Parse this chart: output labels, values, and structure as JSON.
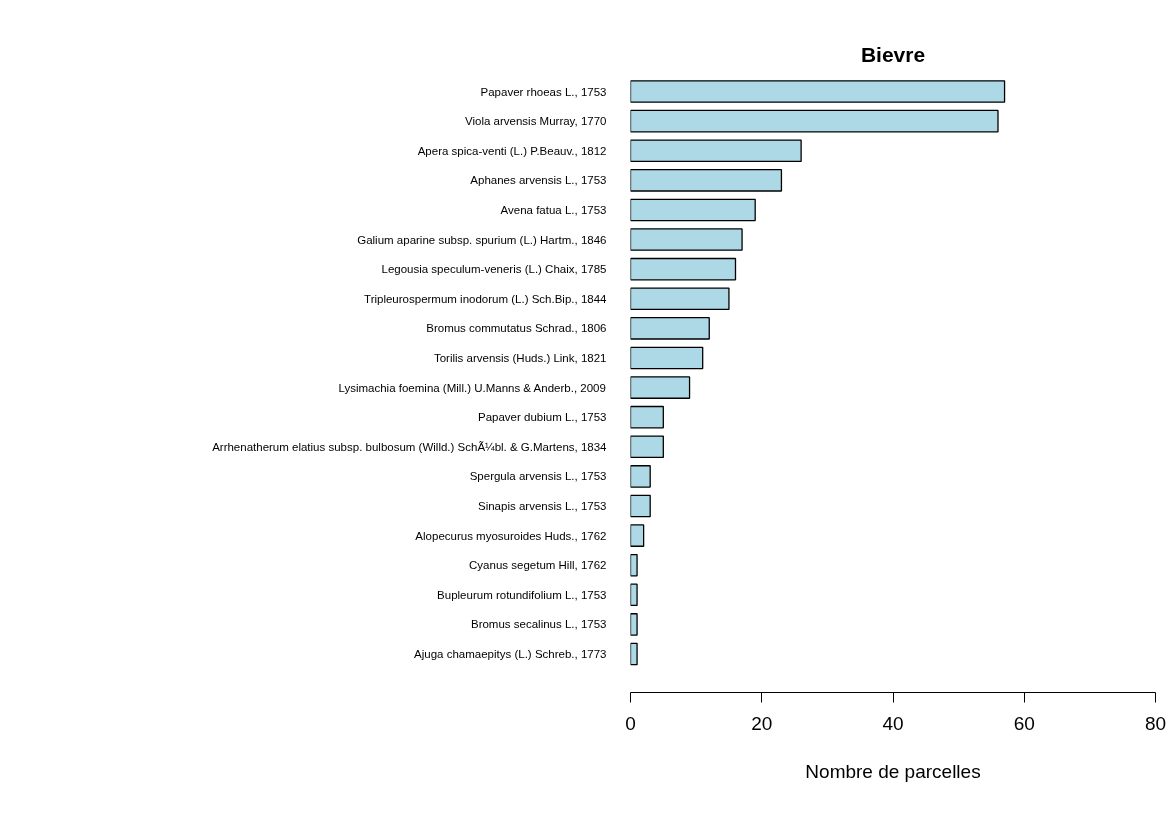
{
  "chart_data": {
    "type": "bar",
    "orientation": "horizontal",
    "title": "Bievre",
    "xlabel": "Nombre de parcelles",
    "categories": [
      "Papaver rhoeas L., 1753",
      "Viola arvensis Murray, 1770",
      "Apera spica-venti (L.) P.Beauv., 1812",
      "Aphanes arvensis L., 1753",
      "Avena fatua L., 1753",
      "Galium aparine subsp. spurium (L.) Hartm., 1846",
      "Legousia speculum-veneris (L.) Chaix, 1785",
      "Tripleurospermum inodorum (L.) Sch.Bip., 1844",
      "Bromus commutatus Schrad., 1806",
      "Torilis arvensis (Huds.) Link, 1821",
      "Lysimachia foemina (Mill.) U.Manns & Anderb., 2009",
      "Papaver dubium L., 1753",
      "Arrhenatherum elatius subsp. bulbosum (Willd.) SchÃ¼bl. & G.Martens, 1834",
      "Spergula arvensis L., 1753",
      "Sinapis arvensis L., 1753",
      "Alopecurus myosuroides Huds., 1762",
      "Cyanus segetum Hill, 1762",
      "Bupleurum rotundifolium L., 1753",
      "Bromus secalinus L., 1753",
      "Ajuga chamaepitys (L.) Schreb., 1773"
    ],
    "values": [
      57,
      56,
      26,
      23,
      19,
      17,
      16,
      15,
      12,
      11,
      9,
      5,
      5,
      3,
      3,
      2,
      1,
      1,
      1,
      1
    ],
    "color": "#add8e6",
    "xlim": [
      0,
      80
    ],
    "xticks": [
      0,
      20,
      40,
      60,
      80
    ],
    "grid": false
  }
}
